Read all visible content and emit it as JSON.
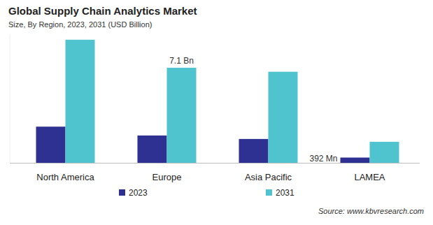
{
  "chart_data": {
    "type": "bar",
    "title": "Global Supply Chain Analytics Market",
    "subtitle": "Size, By Region, 2023, 2031 (USD Billion)",
    "source": "Source: www.kbvresearch.com",
    "categories": [
      "North America",
      "Europe",
      "Asia Pacific",
      "LAMEA"
    ],
    "series": [
      {
        "name": "2023",
        "color": "#2e3192",
        "values": [
          2.7,
          2.04,
          1.78,
          0.392
        ],
        "value_labels": [
          null,
          null,
          null,
          "392 Mn"
        ]
      },
      {
        "name": "2031",
        "color": "#4fc4cf",
        "values": [
          9.19,
          7.1,
          6.8,
          1.57
        ],
        "value_labels": [
          null,
          "7.1 Bn",
          null,
          null
        ]
      }
    ],
    "ylim": [
      0,
      9.6
    ],
    "tick_labels": "x",
    "grid": false,
    "legend": "bottom",
    "data_labels": true
  }
}
